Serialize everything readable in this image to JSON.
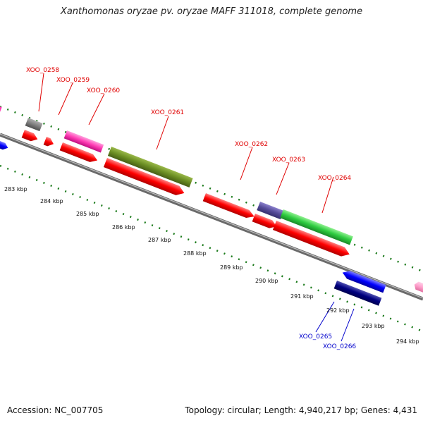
{
  "title": "Xanthomonas oryzae pv. oryzae MAFF 311018, complete genome",
  "footer": {
    "accession": "Accession: NC_007705",
    "topology": "Topology: circular; Length: 4,940,217 bp; Genes: 4,431"
  },
  "colors": {
    "backbone": "#7f7f7f",
    "tick": "#1a7a1a",
    "forward_label": "#e00000",
    "reverse_label": "#0000cc"
  },
  "scale": {
    "unit": "kbp",
    "ticks": [
      "283 kbp",
      "284 kbp",
      "285 kbp",
      "286 kbp",
      "287 kbp",
      "288 kbp",
      "289 kbp",
      "290 kbp",
      "291 kbp",
      "292 kbp",
      "293 kbp",
      "294 kbp"
    ]
  },
  "genes": [
    {
      "label": "XOO_0258",
      "strand": "+",
      "color": "#808080"
    },
    {
      "label": "XOO_0259",
      "strand": "+",
      "color": "#ff0000"
    },
    {
      "label": "XOO_0260",
      "strand": "+",
      "color": "#ff3cb4"
    },
    {
      "label": "XOO_0261",
      "strand": "+",
      "color": "#6b8e23"
    },
    {
      "label": "XOO_0262",
      "strand": "+",
      "color": "#ff0000"
    },
    {
      "label": "XOO_0263",
      "strand": "+",
      "color": "#554b99"
    },
    {
      "label": "XOO_0264",
      "strand": "+",
      "color": "#2ecc40"
    },
    {
      "label": "XOO_0265",
      "strand": "-",
      "color": "#0000ff"
    },
    {
      "label": "XOO_0266",
      "strand": "-",
      "color": "#000080"
    }
  ]
}
